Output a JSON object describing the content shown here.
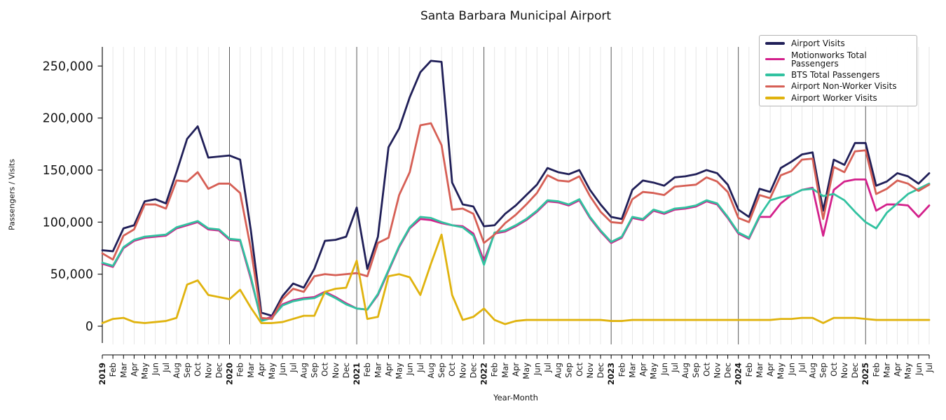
{
  "page": {
    "title": "Santa Barbara Municipal Airport",
    "xlabel": "Year-Month",
    "ylabel": "Passengers / Visits"
  },
  "chart_data": {
    "type": "line",
    "title": "Santa Barbara Municipal Airport",
    "xlabel": "Year-Month",
    "ylabel": "Passengers / Visits",
    "legend_position": "upper-right",
    "grid": {
      "vertical_month_lines": true,
      "dark_line_at_each_january": true,
      "horizontal_lines": false
    },
    "ylim": [
      0,
      269000
    ],
    "yticks": [
      {
        "value": 0,
        "label": "0"
      },
      {
        "value": 50000,
        "label": "50,000"
      },
      {
        "value": 100000,
        "label": "100,000"
      },
      {
        "value": 150000,
        "label": "150,000"
      },
      {
        "value": 200000,
        "label": "200,000"
      },
      {
        "value": 250000,
        "label": "250,000"
      }
    ],
    "x_tick_labels": [
      "2019",
      "Feb",
      "Mar",
      "Apr",
      "May",
      "Jun",
      "Jul",
      "Aug",
      "Sep",
      "Oct",
      "Nov",
      "Dec",
      "2020",
      "Feb",
      "Mar",
      "Apr",
      "May",
      "Jun",
      "Jul",
      "Aug",
      "Sep",
      "Oct",
      "Nov",
      "Dec",
      "2021",
      "Feb",
      "Mar",
      "Apr",
      "May",
      "Jun",
      "Jul",
      "Aug",
      "Sep",
      "Oct",
      "Nov",
      "Dec",
      "2022",
      "Feb",
      "Mar",
      "Apr",
      "May",
      "Jun",
      "Jul",
      "Aug",
      "Sep",
      "Oct",
      "Nov",
      "Dec",
      "2023",
      "Feb",
      "Mar",
      "Apr",
      "May",
      "Jun",
      "Jul",
      "Aug",
      "Sep",
      "Oct",
      "Nov",
      "Dec",
      "2024",
      "Feb",
      "Mar",
      "Apr",
      "May",
      "Jun",
      "Jul",
      "Aug",
      "Sep",
      "Oct",
      "Nov",
      "Dec",
      "2025",
      "Feb",
      "Mar",
      "Apr",
      "May",
      "Jun",
      "Jul"
    ],
    "series": [
      {
        "name": "Airport Visits",
        "color": "#201f58",
        "values": [
          73000,
          72000,
          94000,
          97000,
          120000,
          122000,
          118000,
          148000,
          180000,
          192000,
          162000,
          163000,
          164000,
          160000,
          93000,
          13000,
          10000,
          29000,
          41000,
          37000,
          55000,
          82000,
          83000,
          86000,
          114000,
          55000,
          86000,
          172000,
          190000,
          220000,
          244000,
          255000,
          254000,
          138000,
          117000,
          115000,
          96000,
          97000,
          108000,
          116000,
          126000,
          136000,
          152000,
          148000,
          146000,
          150000,
          131000,
          117000,
          105000,
          103000,
          131000,
          140000,
          138000,
          135000,
          143000,
          144000,
          146000,
          150000,
          147000,
          136000,
          112000,
          105000,
          132000,
          129000,
          152000,
          158000,
          165000,
          167000,
          111000,
          160000,
          155000,
          176000,
          176000,
          135000,
          139000,
          147000,
          144000,
          137000,
          147000
        ]
      },
      {
        "name": "Motionworks Total Passengers",
        "color": "#d3208b",
        "values": [
          60000,
          57000,
          75000,
          82000,
          85000,
          86000,
          87000,
          94000,
          97000,
          100000,
          93000,
          92000,
          83000,
          82000,
          46000,
          6000,
          9000,
          21000,
          25000,
          27000,
          28000,
          33000,
          28000,
          22000,
          17000,
          16000,
          30000,
          53000,
          76000,
          94000,
          103000,
          102000,
          99000,
          97000,
          96000,
          89000,
          63000,
          89000,
          91000,
          96000,
          102000,
          110000,
          120000,
          119000,
          116000,
          121000,
          104000,
          91000,
          80000,
          85000,
          104000,
          102000,
          111000,
          108000,
          112000,
          113000,
          115000,
          120000,
          117000,
          104000,
          89000,
          84000,
          105000,
          105000,
          118000,
          126000,
          131000,
          133000,
          87000,
          131000,
          139000,
          141000,
          141000,
          111000,
          117000,
          117000,
          116000,
          105000,
          116000
        ]
      },
      {
        "name": "BTS Total Passengers",
        "color": "#31c2a0",
        "values": [
          61000,
          58000,
          76000,
          83000,
          86000,
          87000,
          88000,
          95000,
          98000,
          101000,
          94000,
          93000,
          84000,
          83000,
          48000,
          5000,
          8000,
          20000,
          24000,
          26000,
          27000,
          32000,
          27000,
          21000,
          17000,
          16000,
          31000,
          54000,
          77000,
          95000,
          105000,
          104000,
          100000,
          97000,
          95000,
          87000,
          59000,
          90000,
          92000,
          97000,
          103000,
          111000,
          121000,
          120000,
          117000,
          122000,
          105000,
          92000,
          81000,
          86000,
          105000,
          103000,
          112000,
          109000,
          113000,
          114000,
          116000,
          121000,
          118000,
          105000,
          90000,
          85000,
          106000,
          121000,
          124000,
          126000,
          131000,
          132000,
          125000,
          127000,
          121000,
          110000,
          100000,
          94000,
          109000,
          118000,
          127000,
          132000,
          137000
        ]
      },
      {
        "name": "Airport Non-Worker Visits",
        "color": "#d65f55",
        "values": [
          70000,
          64000,
          87000,
          93000,
          117000,
          117000,
          113000,
          140000,
          139000,
          148000,
          132000,
          137000,
          137000,
          128000,
          75000,
          8000,
          7000,
          26000,
          36000,
          33000,
          48000,
          50000,
          49000,
          50000,
          51000,
          48000,
          80000,
          85000,
          126000,
          148000,
          193000,
          195000,
          174000,
          112000,
          113000,
          108000,
          80000,
          88000,
          99000,
          107000,
          117000,
          128000,
          145000,
          140000,
          139000,
          144000,
          125000,
          110000,
          100000,
          99000,
          122000,
          129000,
          128000,
          126000,
          134000,
          135000,
          136000,
          143000,
          139000,
          129000,
          104000,
          100000,
          126000,
          123000,
          145000,
          149000,
          160000,
          161000,
          103000,
          153000,
          148000,
          168000,
          169000,
          127000,
          132000,
          140000,
          137000,
          130000,
          136000
        ]
      },
      {
        "name": "Airport Worker Visits",
        "color": "#e0b30e",
        "values": [
          3000,
          7000,
          8000,
          4000,
          3000,
          4000,
          5000,
          8000,
          40000,
          44000,
          30000,
          28000,
          26000,
          35000,
          18000,
          3000,
          3000,
          4000,
          7000,
          10000,
          10000,
          33000,
          36000,
          37000,
          63000,
          7000,
          9000,
          48000,
          50000,
          47000,
          30000,
          60000,
          88000,
          30000,
          6000,
          9000,
          17000,
          6000,
          2000,
          5000,
          6000,
          6000,
          6000,
          6000,
          6000,
          6000,
          6000,
          6000,
          5000,
          5000,
          6000,
          6000,
          6000,
          6000,
          6000,
          6000,
          6000,
          6000,
          6000,
          6000,
          6000,
          6000,
          6000,
          6000,
          7000,
          7000,
          8000,
          8000,
          3000,
          8000,
          8000,
          8000,
          7000,
          6000,
          6000,
          6000,
          6000,
          6000,
          6000
        ]
      }
    ]
  }
}
